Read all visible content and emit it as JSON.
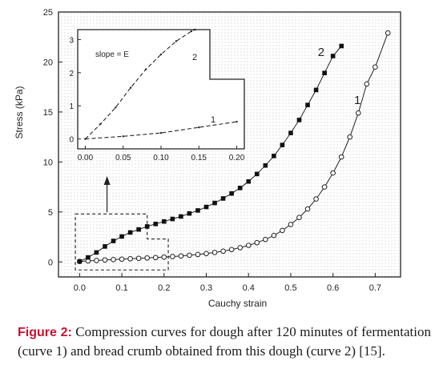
{
  "caption": {
    "label": "Figure 2:",
    "text": " Compression curves for dough after 120 minutes of fermentation (curve 1) and bread crumb obtained from this dough (curve 2) [15]."
  },
  "chart_data": [
    {
      "type": "line",
      "xlabel": "Cauchy strain",
      "ylabel": "Stress (kPa)",
      "xlim": [
        -0.05,
        0.76
      ],
      "ylim": [
        -1.5,
        25
      ],
      "xticks": [
        "0.0",
        "0.1",
        "0.2",
        "0.3",
        "0.4",
        "0.5",
        "0.6",
        "0.7"
      ],
      "yticks": [
        "0",
        "5",
        "10",
        "15",
        "20",
        "25"
      ],
      "grid": "dotted",
      "series": [
        {
          "name": "1",
          "marker": "open-circle",
          "x": [
            0.0,
            0.02,
            0.04,
            0.06,
            0.08,
            0.1,
            0.12,
            0.14,
            0.16,
            0.18,
            0.2,
            0.22,
            0.24,
            0.26,
            0.28,
            0.3,
            0.32,
            0.34,
            0.36,
            0.38,
            0.4,
            0.42,
            0.44,
            0.46,
            0.48,
            0.5,
            0.52,
            0.54,
            0.56,
            0.58,
            0.6,
            0.62,
            0.64,
            0.66,
            0.68,
            0.7,
            0.73
          ],
          "y": [
            0.05,
            0.1,
            0.15,
            0.2,
            0.24,
            0.28,
            0.32,
            0.36,
            0.4,
            0.44,
            0.49,
            0.54,
            0.6,
            0.67,
            0.75,
            0.84,
            0.95,
            1.08,
            1.24,
            1.43,
            1.66,
            1.93,
            2.25,
            2.65,
            3.15,
            3.75,
            4.45,
            5.3,
            6.3,
            7.5,
            8.9,
            10.5,
            12.5,
            14.9,
            17.8,
            19.5,
            22.9
          ]
        },
        {
          "name": "2",
          "marker": "filled-square",
          "x": [
            0.0,
            0.02,
            0.04,
            0.06,
            0.08,
            0.1,
            0.12,
            0.14,
            0.16,
            0.18,
            0.2,
            0.22,
            0.24,
            0.26,
            0.28,
            0.3,
            0.32,
            0.34,
            0.36,
            0.38,
            0.4,
            0.42,
            0.44,
            0.46,
            0.48,
            0.5,
            0.52,
            0.54,
            0.56,
            0.58,
            0.6,
            0.62
          ],
          "y": [
            0.05,
            0.45,
            0.95,
            1.55,
            2.1,
            2.55,
            2.95,
            3.25,
            3.55,
            3.8,
            4.05,
            4.3,
            4.55,
            4.85,
            5.15,
            5.5,
            5.9,
            6.35,
            6.85,
            7.4,
            8.05,
            8.8,
            9.65,
            10.6,
            11.7,
            12.9,
            14.2,
            15.7,
            17.2,
            18.9,
            20.6,
            21.6
          ]
        }
      ],
      "annotations": [
        "2",
        "1"
      ]
    },
    {
      "type": "line",
      "role": "inset",
      "xlim": [
        -0.01,
        0.21
      ],
      "ylim": [
        -0.3,
        3.3
      ],
      "xticks": [
        "0.00",
        "0.05",
        "0.10",
        "0.15",
        "0.20"
      ],
      "yticks": [
        "0",
        "1",
        "2",
        "3"
      ],
      "annotation": "slope = E",
      "series": [
        {
          "name": "2",
          "x": [
            0.0,
            0.02,
            0.04,
            0.06,
            0.08,
            0.1,
            0.12,
            0.14,
            0.145
          ],
          "y": [
            0.0,
            0.45,
            0.95,
            1.55,
            2.1,
            2.55,
            2.95,
            3.25,
            3.3
          ]
        },
        {
          "name": "1",
          "x": [
            0.0,
            0.05,
            0.1,
            0.15,
            0.2
          ],
          "y": [
            0.0,
            0.08,
            0.18,
            0.35,
            0.52
          ]
        }
      ]
    }
  ]
}
